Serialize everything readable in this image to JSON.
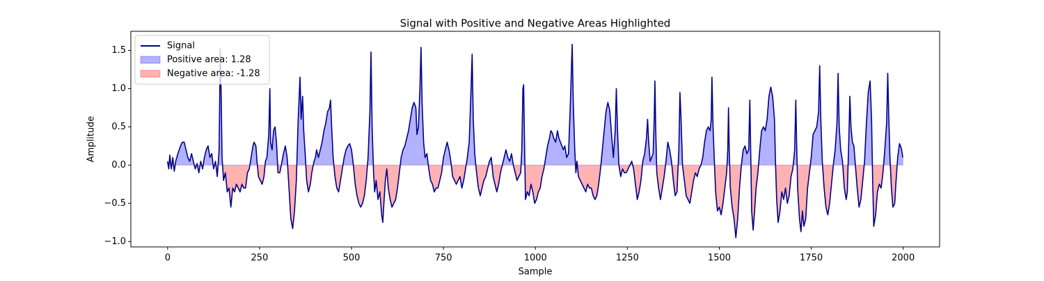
{
  "chart_data": {
    "type": "line",
    "title": "Signal with Positive and Negative Areas Highlighted",
    "xlabel": "Sample",
    "ylabel": "Amplitude",
    "xlim": [
      -100,
      2099
    ],
    "ylim": [
      -1.07,
      1.75
    ],
    "xticks": [
      0,
      250,
      500,
      750,
      1000,
      1250,
      1500,
      1750,
      2000
    ],
    "yticks": [
      {
        "value": -1.0,
        "label": "−1.0"
      },
      {
        "value": -0.5,
        "label": "−0.5"
      },
      {
        "value": 0,
        "label": "0.0"
      },
      0.5,
      {
        "value": 1.0,
        "label": "1.0"
      },
      1.5
    ],
    "legend": "upper left",
    "x": [
      0,
      3,
      6,
      10,
      14,
      18,
      22,
      28,
      35,
      40,
      45,
      50,
      55,
      60,
      65,
      70,
      75,
      80,
      85,
      90,
      95,
      100,
      105,
      110,
      115,
      120,
      125,
      130,
      135,
      140,
      143,
      146,
      148,
      152,
      157,
      162,
      167,
      172,
      177,
      182,
      187,
      192,
      197,
      202,
      207,
      212,
      217,
      222,
      227,
      232,
      235,
      240,
      243,
      247,
      252,
      257,
      262,
      266,
      270,
      275,
      278,
      280,
      284,
      288,
      292,
      296,
      300,
      305,
      310,
      315,
      320,
      325,
      330,
      335,
      340,
      345,
      350,
      355,
      360,
      363,
      367,
      370,
      374,
      378,
      383,
      388,
      392,
      398,
      402,
      405,
      410,
      415,
      420,
      425,
      430,
      435,
      440,
      443,
      446,
      450,
      455,
      460,
      465,
      470,
      475,
      480,
      485,
      490,
      495,
      500,
      505,
      510,
      515,
      520,
      525,
      530,
      535,
      540,
      545,
      550,
      553,
      556,
      560,
      563,
      567,
      572,
      577,
      582,
      585,
      588,
      592,
      596,
      600,
      605,
      610,
      615,
      620,
      625,
      630,
      635,
      640,
      645,
      650,
      655,
      660,
      665,
      670,
      675,
      678,
      682,
      686,
      689,
      692,
      696,
      700,
      705,
      710,
      715,
      720,
      725,
      730,
      735,
      740,
      745,
      750,
      755,
      760,
      765,
      770,
      775,
      780,
      785,
      790,
      795,
      800,
      805,
      810,
      815,
      820,
      825,
      828,
      831,
      835,
      840,
      845,
      850,
      855,
      860,
      865,
      870,
      875,
      880,
      885,
      890,
      895,
      900,
      905,
      910,
      915,
      920,
      925,
      930,
      935,
      940,
      945,
      950,
      955,
      960,
      963,
      966,
      968,
      970,
      973,
      978,
      983,
      988,
      993,
      998,
      1003,
      1008,
      1013,
      1018,
      1023,
      1028,
      1033,
      1038,
      1042,
      1046,
      1050,
      1055,
      1060,
      1064,
      1068,
      1072,
      1076,
      1080,
      1085,
      1090,
      1095,
      1100,
      1103,
      1107,
      1110,
      1113,
      1117,
      1122,
      1127,
      1132,
      1137,
      1142,
      1147,
      1152,
      1157,
      1162,
      1167,
      1172,
      1177,
      1182,
      1187,
      1192,
      1197,
      1202,
      1207,
      1212,
      1217,
      1220,
      1223,
      1227,
      1232,
      1237,
      1242,
      1247,
      1252,
      1257,
      1262,
      1267,
      1272,
      1277,
      1282,
      1287,
      1292,
      1297,
      1302,
      1305,
      1308,
      1312,
      1316,
      1320,
      1323,
      1325,
      1327,
      1330,
      1335,
      1340,
      1345,
      1350,
      1355,
      1360,
      1365,
      1370,
      1375,
      1380,
      1385,
      1390,
      1393,
      1396,
      1400,
      1405,
      1410,
      1415,
      1420,
      1425,
      1430,
      1435,
      1440,
      1445,
      1450,
      1455,
      1460,
      1465,
      1470,
      1475,
      1478,
      1480,
      1483,
      1487,
      1490,
      1495,
      1500,
      1505,
      1510,
      1515,
      1520,
      1523,
      1525,
      1527,
      1530,
      1535,
      1540,
      1545,
      1550,
      1555,
      1560,
      1565,
      1570,
      1575,
      1580,
      1583,
      1585,
      1588,
      1592,
      1596,
      1600,
      1605,
      1610,
      1615,
      1620,
      1625,
      1630,
      1635,
      1640,
      1645,
      1650,
      1653,
      1656,
      1660,
      1665,
      1670,
      1675,
      1680,
      1685,
      1690,
      1695,
      1700,
      1705,
      1708,
      1710,
      1713,
      1718,
      1722,
      1726,
      1730,
      1735,
      1740,
      1745,
      1750,
      1755,
      1760,
      1765,
      1770,
      1773,
      1776,
      1780,
      1785,
      1790,
      1795,
      1800,
      1805,
      1810,
      1815,
      1820,
      1823,
      1826,
      1830,
      1835,
      1840,
      1845,
      1848,
      1852,
      1855,
      1858,
      1862,
      1866,
      1870,
      1875,
      1880,
      1885,
      1890,
      1895,
      1900,
      1905,
      1910,
      1914,
      1917,
      1920,
      1925,
      1930,
      1935,
      1940,
      1945,
      1950,
      1955,
      1958,
      1961,
      1964,
      1968,
      1972,
      1977,
      1980,
      1985,
      1990,
      1995,
      1999
    ],
    "series": [
      {
        "name": "Signal",
        "color": "#00008b",
        "values": [
          0.05,
          -0.05,
          0.13,
          -0.05,
          0.1,
          -0.08,
          0.05,
          0.15,
          0.25,
          0.3,
          0.3,
          0.2,
          0.1,
          0.05,
          0.15,
          0.05,
          -0.05,
          0.02,
          -0.1,
          0.05,
          -0.05,
          0.1,
          0.2,
          0.25,
          0.1,
          0.15,
          -0.05,
          0.05,
          -0.15,
          0.2,
          1.52,
          0.8,
          0.1,
          -0.2,
          -0.1,
          -0.35,
          -0.3,
          -0.55,
          -0.3,
          -0.35,
          -0.25,
          -0.3,
          -0.35,
          -0.25,
          -0.3,
          -0.3,
          -0.1,
          -0.05,
          0.1,
          0.25,
          0.3,
          0.25,
          0.05,
          -0.15,
          -0.2,
          -0.25,
          -0.15,
          0.05,
          0.1,
          0.4,
          1.0,
          0.3,
          0.2,
          0.45,
          0.5,
          0.3,
          -0.1,
          -0.1,
          0.02,
          0.15,
          0.25,
          0.1,
          -0.3,
          -0.7,
          -0.83,
          -0.6,
          -0.2,
          0.6,
          1.15,
          0.6,
          0.9,
          0.45,
          0.15,
          -0.2,
          -0.35,
          -0.25,
          -0.1,
          0.05,
          0.1,
          0.2,
          0.1,
          0.2,
          0.3,
          0.45,
          0.55,
          0.7,
          0.75,
          0.85,
          0.5,
          0.1,
          -0.15,
          -0.3,
          -0.35,
          -0.2,
          -0.05,
          0.1,
          0.2,
          0.25,
          0.28,
          0.2,
          0.0,
          -0.25,
          -0.4,
          -0.5,
          -0.55,
          -0.5,
          -0.4,
          -0.2,
          0.1,
          0.7,
          1.48,
          0.5,
          -0.1,
          -0.35,
          -0.2,
          -0.45,
          -0.35,
          -0.65,
          -0.75,
          -0.5,
          -0.2,
          -0.05,
          -0.3,
          -0.45,
          -0.55,
          -0.5,
          -0.45,
          -0.3,
          -0.1,
          0.1,
          0.2,
          0.25,
          0.35,
          0.45,
          0.6,
          0.75,
          0.82,
          0.75,
          0.4,
          0.5,
          1.0,
          1.54,
          0.8,
          0.3,
          0.1,
          0.15,
          -0.05,
          -0.2,
          -0.25,
          -0.35,
          -0.3,
          -0.3,
          -0.2,
          -0.1,
          0.1,
          0.2,
          0.3,
          0.2,
          0.05,
          -0.15,
          -0.2,
          -0.25,
          -0.2,
          -0.15,
          -0.3,
          -0.2,
          -0.05,
          0.1,
          0.3,
          1.0,
          1.45,
          0.6,
          0.15,
          -0.1,
          -0.3,
          -0.4,
          -0.3,
          -0.2,
          -0.15,
          -0.05,
          0.05,
          0.1,
          -0.15,
          -0.25,
          -0.35,
          -0.25,
          -0.1,
          0.0,
          0.1,
          0.2,
          0.1,
          0.05,
          0.15,
          0.0,
          -0.1,
          -0.2,
          -0.15,
          -0.1,
          0.2,
          1.0,
          1.05,
          0.4,
          -0.45,
          -0.35,
          -0.4,
          -0.25,
          -0.35,
          -0.5,
          -0.45,
          -0.35,
          -0.3,
          -0.15,
          -0.05,
          0.1,
          0.25,
          0.35,
          0.45,
          0.42,
          0.35,
          0.3,
          0.45,
          0.35,
          0.3,
          0.25,
          0.2,
          0.25,
          0.1,
          0.15,
          0.8,
          1.58,
          0.8,
          0.2,
          -0.1,
          0.05,
          -0.15,
          -0.2,
          -0.25,
          -0.3,
          -0.35,
          -0.25,
          -0.3,
          -0.3,
          -0.4,
          -0.45,
          -0.4,
          -0.25,
          -0.05,
          0.2,
          0.45,
          0.7,
          0.82,
          0.72,
          0.4,
          0.1,
          0.45,
          1.0,
          0.5,
          0.0,
          -0.15,
          -0.05,
          -0.1,
          -0.1,
          -0.05,
          0.0,
          0.05,
          -0.05,
          -0.25,
          -0.45,
          -0.35,
          -0.2,
          0.05,
          0.15,
          0.35,
          0.6,
          0.3,
          0.05,
          0.1,
          0.15,
          0.6,
          1.1,
          0.5,
          -0.1,
          -0.3,
          -0.45,
          -0.3,
          -0.15,
          0.05,
          0.3,
          0.2,
          0.05,
          -0.2,
          -0.4,
          -0.35,
          0.2,
          0.95,
          0.6,
          0.0,
          -0.2,
          -0.4,
          -0.45,
          -0.5,
          -0.35,
          -0.2,
          -0.1,
          -0.15,
          -0.05,
          0.0,
          0.1,
          0.3,
          0.45,
          0.5,
          0.45,
          0.6,
          1.15,
          0.5,
          0.0,
          -0.35,
          -0.6,
          -0.55,
          -0.65,
          -0.5,
          -0.3,
          -0.1,
          0.2,
          0.75,
          0.2,
          -0.3,
          -0.55,
          -0.7,
          -0.95,
          -0.7,
          -0.3,
          0.0,
          0.2,
          0.25,
          0.15,
          0.2,
          0.85,
          0.3,
          -0.6,
          -0.85,
          -0.6,
          -0.3,
          -0.1,
          0.2,
          0.45,
          0.5,
          0.45,
          0.6,
          0.9,
          1.02,
          0.9,
          0.6,
          0.0,
          -0.45,
          -0.75,
          -0.6,
          -0.35,
          -0.45,
          -0.3,
          -0.5,
          -0.4,
          -0.15,
          -0.05,
          0.2,
          0.85,
          0.35,
          -0.3,
          -0.7,
          -0.87,
          -0.6,
          -0.8,
          -0.7,
          -0.3,
          -0.1,
          0.1,
          0.4,
          0.45,
          0.5,
          0.7,
          1.3,
          0.6,
          0.05,
          -0.3,
          -0.55,
          -0.65,
          -0.5,
          -0.25,
          0.0,
          0.2,
          0.55,
          1.2,
          0.5,
          0.2,
          0.05,
          -0.3,
          -0.45,
          -0.35,
          0.3,
          0.9,
          0.5,
          0.3,
          0.25,
          0.0,
          -0.3,
          -0.55,
          -0.45,
          -0.2,
          0.05,
          0.55,
          0.95,
          1.1,
          0.6,
          -0.2,
          -0.8,
          -0.65,
          -0.35,
          -0.25,
          -0.3,
          -0.1,
          0.2,
          0.55,
          1.2,
          0.6,
          0.1,
          -0.3,
          -0.55,
          -0.5,
          -0.25,
          0.1,
          0.28,
          0.22,
          0.1
        ]
      }
    ],
    "areas": [
      {
        "name": "Positive area: 1.28",
        "color": "#0000ff",
        "side": "positive"
      },
      {
        "name": "Negative area: -1.28",
        "color": "#ff0000",
        "side": "negative"
      }
    ]
  }
}
